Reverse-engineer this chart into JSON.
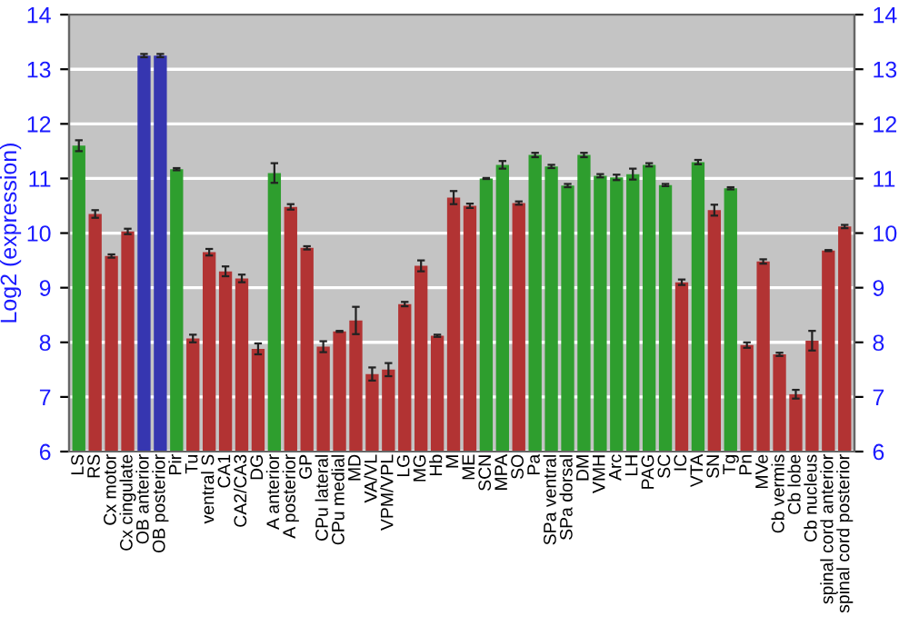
{
  "chart_data": {
    "type": "bar",
    "ylabel": "Log2 (expression)",
    "categories": [
      "LS",
      "RS",
      "Cx motor",
      "Cx cingulate",
      "OB anterior",
      "OB posterior",
      "Pir",
      "Tu",
      "ventral S",
      "CA1",
      "CA2/CA3",
      "DG",
      "A anterior",
      "A posterior",
      "GP",
      "CPu lateral",
      "CPu medial",
      "MD",
      "VA/VL",
      "VPM/VPL",
      "LG",
      "MG",
      "Hb",
      "M",
      "ME",
      "SCN",
      "MPA",
      "SO",
      "Pa",
      "SPa ventral",
      "SPa dorsal",
      "DM",
      "VMH",
      "Arc",
      "LH",
      "PAG",
      "SC",
      "IC",
      "VTA",
      "SN",
      "Tg",
      "Pn",
      "MVe",
      "Cb vermis",
      "Cb lobe",
      "Cb nucleus",
      "spinal cord anterior",
      "spinal cord posterior"
    ],
    "values": [
      11.6,
      10.35,
      9.58,
      10.03,
      13.25,
      13.25,
      11.17,
      8.07,
      9.65,
      9.3,
      9.17,
      7.88,
      11.1,
      10.48,
      9.73,
      7.92,
      8.2,
      8.4,
      7.42,
      7.5,
      8.7,
      9.4,
      8.12,
      10.65,
      10.5,
      11.0,
      11.25,
      10.55,
      11.43,
      11.22,
      10.87,
      11.43,
      11.05,
      11.02,
      11.08,
      11.25,
      10.88,
      9.1,
      11.3,
      10.42,
      10.82,
      7.95,
      9.48,
      7.78,
      7.05,
      8.03,
      9.68,
      10.12
    ],
    "errors": [
      0.1,
      0.07,
      0.03,
      0.05,
      0.03,
      0.03,
      0.02,
      0.07,
      0.06,
      0.09,
      0.07,
      0.1,
      0.18,
      0.05,
      0.03,
      0.1,
      0.01,
      0.25,
      0.12,
      0.12,
      0.04,
      0.1,
      0.02,
      0.12,
      0.04,
      0.01,
      0.07,
      0.03,
      0.04,
      0.03,
      0.03,
      0.04,
      0.03,
      0.05,
      0.1,
      0.03,
      0.02,
      0.05,
      0.04,
      0.1,
      0.02,
      0.05,
      0.04,
      0.03,
      0.08,
      0.18,
      0.01,
      0.03
    ],
    "colors": [
      "#2e9e2e",
      "#b23333",
      "#b23333",
      "#b23333",
      "#3636b0",
      "#3636b0",
      "#2e9e2e",
      "#b23333",
      "#b23333",
      "#b23333",
      "#b23333",
      "#b23333",
      "#2e9e2e",
      "#b23333",
      "#b23333",
      "#b23333",
      "#b23333",
      "#b23333",
      "#b23333",
      "#b23333",
      "#b23333",
      "#b23333",
      "#b23333",
      "#b23333",
      "#b23333",
      "#2e9e2e",
      "#2e9e2e",
      "#b23333",
      "#2e9e2e",
      "#2e9e2e",
      "#2e9e2e",
      "#2e9e2e",
      "#2e9e2e",
      "#2e9e2e",
      "#2e9e2e",
      "#2e9e2e",
      "#2e9e2e",
      "#b23333",
      "#2e9e2e",
      "#b23333",
      "#2e9e2e",
      "#b23333",
      "#b23333",
      "#b23333",
      "#b23333",
      "#b23333",
      "#b23333",
      "#b23333"
    ],
    "ylim": [
      6,
      14
    ],
    "yticks": [
      6,
      7,
      8,
      9,
      10,
      11,
      12,
      13,
      14
    ],
    "y2lim": [
      6,
      14
    ],
    "y2ticks": [
      6,
      7,
      8,
      9,
      10,
      11,
      12,
      13,
      14
    ],
    "grid": "y"
  }
}
